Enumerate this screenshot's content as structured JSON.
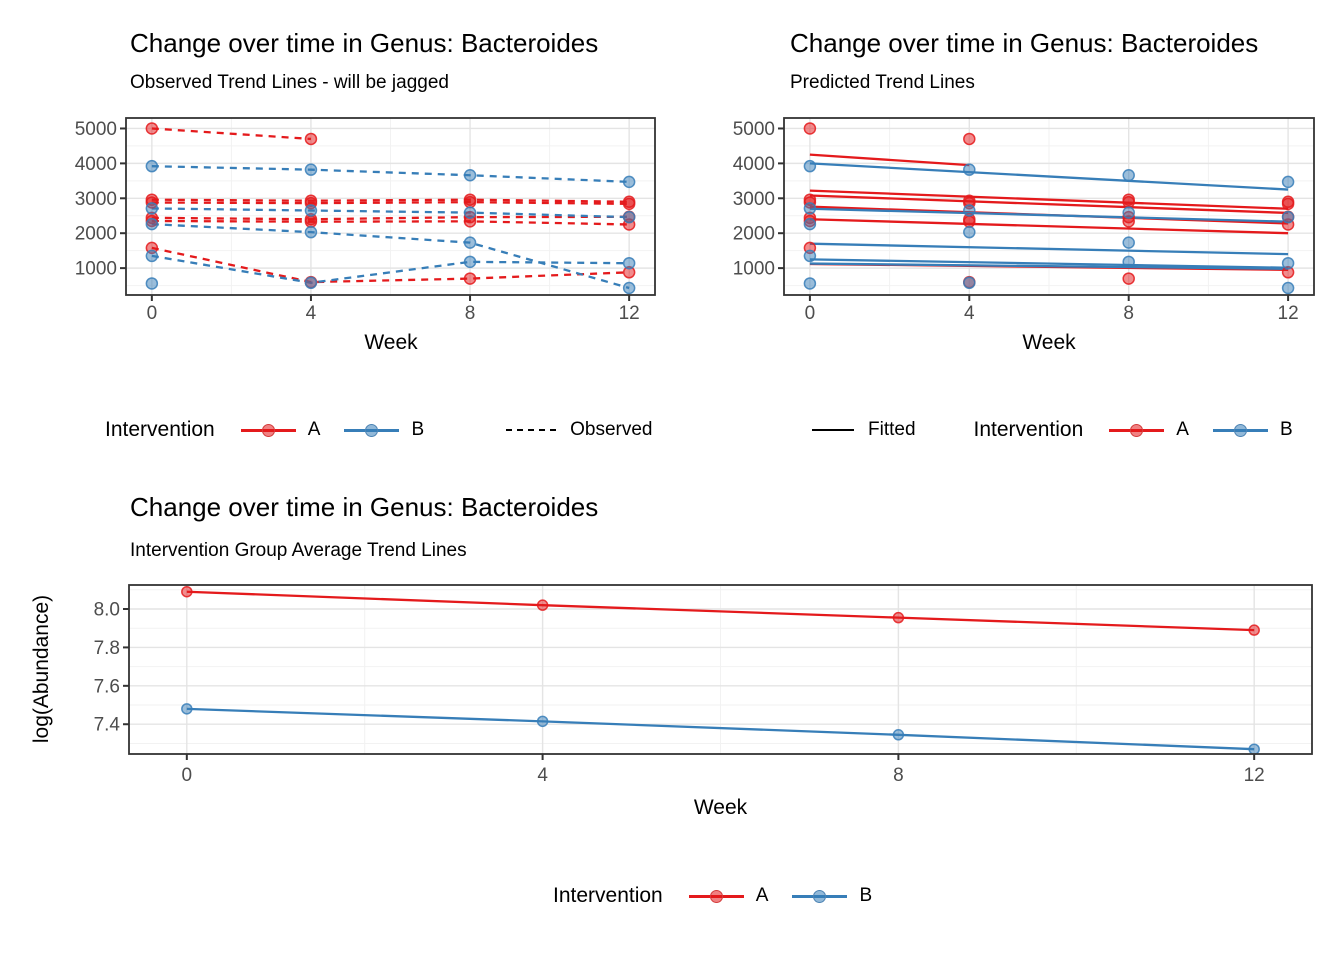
{
  "colors": {
    "A": "#e41a1c",
    "B": "#377eb8",
    "observed_key": "#000000",
    "fitted_key": "#000000",
    "grid_major": "#e4e4e4",
    "grid_minor": "#f2f2f2",
    "panel_border": "#333333",
    "tick_mark": "#333333",
    "tick_label": "#4d4d4d"
  },
  "legends": {
    "top_left": {
      "title": "Intervention",
      "item_a": "A",
      "item_b": "B",
      "linetype_label": "Observed"
    },
    "top_right": {
      "linetype_label": "Fitted",
      "title": "Intervention",
      "item_a": "A",
      "item_b": "B"
    },
    "bottom": {
      "title": "Intervention",
      "item_a": "A",
      "item_b": "B"
    }
  },
  "chart_data": [
    {
      "id": "observed",
      "type": "line",
      "title": "Change over time in Genus: Bacteroides",
      "subtitle": "Observed Trend Lines - will be jagged",
      "xlabel": "Week",
      "ylabel": "",
      "xlim": [
        -0.65,
        12.65
      ],
      "ylim": [
        230,
        5300
      ],
      "x_ticks": [
        {
          "v": 0,
          "label": "0"
        },
        {
          "v": 4,
          "label": "4"
        },
        {
          "v": 8,
          "label": "8"
        },
        {
          "v": 12,
          "label": "12"
        }
      ],
      "x_minor": [
        2,
        6,
        10
      ],
      "y_ticks": [
        {
          "v": 1000,
          "label": "1000"
        },
        {
          "v": 2000,
          "label": "2000"
        },
        {
          "v": 3000,
          "label": "3000"
        },
        {
          "v": 4000,
          "label": "4000"
        },
        {
          "v": 5000,
          "label": "5000"
        }
      ],
      "y_minor": [
        500,
        1500,
        2500,
        3500,
        4500
      ],
      "grid": true,
      "legend_position": "bottom",
      "series": [
        {
          "name": "A-subject-1",
          "group": "A",
          "line": "dashed",
          "points": true,
          "x": [
            0,
            4
          ],
          "y": [
            5000,
            4700
          ]
        },
        {
          "name": "A-subject-2",
          "group": "A",
          "line": "dashed",
          "points": true,
          "x": [
            0,
            4,
            8,
            12
          ],
          "y": [
            2960,
            2930,
            2960,
            2900
          ]
        },
        {
          "name": "A-subject-3",
          "group": "A",
          "line": "dashed",
          "points": true,
          "x": [
            0,
            4,
            8,
            12
          ],
          "y": [
            2880,
            2860,
            2890,
            2840
          ]
        },
        {
          "name": "A-subject-4",
          "group": "A",
          "line": "dashed",
          "points": true,
          "x": [
            0,
            4,
            8,
            12
          ],
          "y": [
            2440,
            2400,
            2460,
            2470
          ]
        },
        {
          "name": "A-subject-5",
          "group": "A",
          "line": "dashed",
          "points": true,
          "x": [
            0,
            4,
            8,
            12
          ],
          "y": [
            2350,
            2330,
            2340,
            2250
          ]
        },
        {
          "name": "A-subject-6",
          "group": "A",
          "line": "dashed",
          "points": true,
          "x": [
            0,
            4,
            8,
            12
          ],
          "y": [
            1580,
            600,
            700,
            880
          ]
        },
        {
          "name": "B-subject-1",
          "group": "B",
          "line": "dashed",
          "points": true,
          "x": [
            0,
            4,
            8,
            12
          ],
          "y": [
            3920,
            3820,
            3660,
            3470
          ]
        },
        {
          "name": "B-subject-2",
          "group": "B",
          "line": "dashed",
          "points": true,
          "x": [
            0,
            4,
            8,
            12
          ],
          "y": [
            2710,
            2650,
            2590,
            2460
          ]
        },
        {
          "name": "B-subject-3",
          "group": "B",
          "line": "dashed",
          "points": true,
          "x": [
            0,
            4,
            8,
            12
          ],
          "y": [
            2260,
            2030,
            1730,
            430
          ]
        },
        {
          "name": "B-subject-4",
          "group": "B",
          "line": "dashed",
          "points": true,
          "x": [
            0,
            4,
            8,
            12
          ],
          "y": [
            1350,
            580,
            1180,
            1140
          ]
        },
        {
          "name": "B-subject-5",
          "group": "B",
          "line": "dashed",
          "points": true,
          "x": [
            0
          ],
          "y": [
            560
          ]
        }
      ]
    },
    {
      "id": "predicted",
      "type": "line",
      "title": "Change over time in Genus: Bacteroides",
      "subtitle": "Predicted Trend Lines",
      "xlabel": "Week",
      "ylabel": "",
      "xlim": [
        -0.65,
        12.65
      ],
      "ylim": [
        230,
        5300
      ],
      "x_ticks": [
        {
          "v": 0,
          "label": "0"
        },
        {
          "v": 4,
          "label": "4"
        },
        {
          "v": 8,
          "label": "8"
        },
        {
          "v": 12,
          "label": "12"
        }
      ],
      "x_minor": [
        2,
        6,
        10
      ],
      "y_ticks": [
        {
          "v": 1000,
          "label": "1000"
        },
        {
          "v": 2000,
          "label": "2000"
        },
        {
          "v": 3000,
          "label": "3000"
        },
        {
          "v": 4000,
          "label": "4000"
        },
        {
          "v": 5000,
          "label": "5000"
        }
      ],
      "y_minor": [
        500,
        1500,
        2500,
        3500,
        4500
      ],
      "grid": true,
      "legend_position": "bottom",
      "series": [
        {
          "name": "A-obs-points-1",
          "group": "A",
          "line": "none",
          "points": true,
          "x": [
            0,
            4
          ],
          "y": [
            5000,
            4700
          ]
        },
        {
          "name": "A-obs-points-2",
          "group": "A",
          "line": "none",
          "points": true,
          "x": [
            0,
            4,
            8,
            12
          ],
          "y": [
            2960,
            2930,
            2960,
            2900
          ]
        },
        {
          "name": "A-obs-points-3",
          "group": "A",
          "line": "none",
          "points": true,
          "x": [
            0,
            4,
            8,
            12
          ],
          "y": [
            2880,
            2860,
            2890,
            2840
          ]
        },
        {
          "name": "A-obs-points-4",
          "group": "A",
          "line": "none",
          "points": true,
          "x": [
            0,
            4,
            8,
            12
          ],
          "y": [
            2440,
            2400,
            2460,
            2470
          ]
        },
        {
          "name": "A-obs-points-5",
          "group": "A",
          "line": "none",
          "points": true,
          "x": [
            0,
            4,
            8,
            12
          ],
          "y": [
            2350,
            2330,
            2340,
            2250
          ]
        },
        {
          "name": "A-obs-points-6",
          "group": "A",
          "line": "none",
          "points": true,
          "x": [
            0,
            4,
            8,
            12
          ],
          "y": [
            1580,
            600,
            700,
            880
          ]
        },
        {
          "name": "B-obs-points-1",
          "group": "B",
          "line": "none",
          "points": true,
          "x": [
            0,
            4,
            8,
            12
          ],
          "y": [
            3920,
            3820,
            3660,
            3470
          ]
        },
        {
          "name": "B-obs-points-2",
          "group": "B",
          "line": "none",
          "points": true,
          "x": [
            0,
            4,
            8,
            12
          ],
          "y": [
            2710,
            2650,
            2590,
            2460
          ]
        },
        {
          "name": "B-obs-points-3",
          "group": "B",
          "line": "none",
          "points": true,
          "x": [
            0,
            4,
            8,
            12
          ],
          "y": [
            2260,
            2030,
            1730,
            430
          ]
        },
        {
          "name": "B-obs-points-4",
          "group": "B",
          "line": "none",
          "points": true,
          "x": [
            0,
            4,
            8,
            12
          ],
          "y": [
            1350,
            580,
            1180,
            1140
          ]
        },
        {
          "name": "B-obs-points-5",
          "group": "B",
          "line": "none",
          "points": true,
          "x": [
            0
          ],
          "y": [
            560
          ]
        },
        {
          "name": "A-fit-1",
          "group": "A",
          "line": "solid",
          "points": false,
          "x": [
            0,
            4
          ],
          "y": [
            4250,
            3950
          ]
        },
        {
          "name": "A-fit-2",
          "group": "A",
          "line": "solid",
          "points": false,
          "x": [
            0,
            12
          ],
          "y": [
            3220,
            2700
          ]
        },
        {
          "name": "A-fit-3",
          "group": "A",
          "line": "solid",
          "points": false,
          "x": [
            0,
            12
          ],
          "y": [
            3080,
            2580
          ]
        },
        {
          "name": "A-fit-4",
          "group": "A",
          "line": "solid",
          "points": false,
          "x": [
            0,
            12
          ],
          "y": [
            2760,
            2280
          ]
        },
        {
          "name": "A-fit-5",
          "group": "A",
          "line": "solid",
          "points": false,
          "x": [
            0,
            12
          ],
          "y": [
            2400,
            2000
          ]
        },
        {
          "name": "A-fit-6",
          "group": "A",
          "line": "solid",
          "points": false,
          "x": [
            0,
            12
          ],
          "y": [
            1120,
            950
          ]
        },
        {
          "name": "B-fit-1",
          "group": "B",
          "line": "solid",
          "points": false,
          "x": [
            0,
            12
          ],
          "y": [
            4000,
            3250
          ]
        },
        {
          "name": "B-fit-2",
          "group": "B",
          "line": "solid",
          "points": false,
          "x": [
            0,
            12
          ],
          "y": [
            2700,
            2330
          ]
        },
        {
          "name": "B-fit-3",
          "group": "B",
          "line": "solid",
          "points": false,
          "x": [
            0,
            12
          ],
          "y": [
            1700,
            1400
          ]
        },
        {
          "name": "B-fit-4",
          "group": "B",
          "line": "solid",
          "points": false,
          "x": [
            0,
            12
          ],
          "y": [
            1250,
            1010
          ]
        },
        {
          "name": "B-fit-5",
          "group": "B",
          "line": "solid",
          "points": false,
          "x": [
            0,
            12
          ],
          "y": [
            1130,
            980
          ]
        }
      ]
    },
    {
      "id": "average",
      "type": "line",
      "title": "Change over time in Genus: Bacteroides",
      "subtitle": "Intervention Group Average Trend Lines",
      "xlabel": "Week",
      "ylabel": "log(Abundance)",
      "xlim": [
        -0.65,
        12.65
      ],
      "ylim": [
        7.245,
        8.125
      ],
      "x_ticks": [
        {
          "v": 0,
          "label": "0"
        },
        {
          "v": 4,
          "label": "4"
        },
        {
          "v": 8,
          "label": "8"
        },
        {
          "v": 12,
          "label": "12"
        }
      ],
      "x_minor": [
        2,
        6,
        10
      ],
      "y_ticks": [
        {
          "v": 7.4,
          "label": "7.4"
        },
        {
          "v": 7.6,
          "label": "7.6"
        },
        {
          "v": 7.8,
          "label": "7.8"
        },
        {
          "v": 8.0,
          "label": "8.0"
        }
      ],
      "y_minor": [
        7.3,
        7.5,
        7.7,
        7.9,
        8.1
      ],
      "grid": true,
      "legend_position": "bottom",
      "series": [
        {
          "name": "A-group-average",
          "group": "A",
          "line": "solid",
          "points": true,
          "x": [
            0,
            4,
            8,
            12
          ],
          "y": [
            8.09,
            8.02,
            7.955,
            7.89
          ]
        },
        {
          "name": "B-group-average",
          "group": "B",
          "line": "solid",
          "points": true,
          "x": [
            0,
            4,
            8,
            12
          ],
          "y": [
            7.48,
            7.415,
            7.345,
            7.27
          ]
        }
      ]
    }
  ]
}
